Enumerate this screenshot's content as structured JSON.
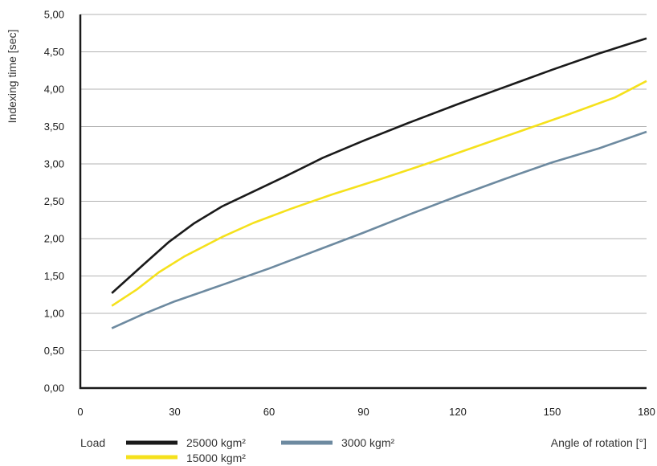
{
  "chart_data": {
    "type": "line",
    "ylabel": "Indexing time [sec]",
    "xlabel": "Angle of rotation [°]",
    "xlim": [
      0,
      180
    ],
    "ylim": [
      0,
      5
    ],
    "x_ticks": [
      0,
      30,
      60,
      90,
      120,
      150,
      180
    ],
    "x_tick_labels": [
      "0",
      "30",
      "60",
      "90",
      "120",
      "150",
      "180"
    ],
    "y_ticks": [
      0,
      0.5,
      1,
      1.5,
      2,
      2.5,
      3,
      3.5,
      4,
      4.5,
      5
    ],
    "y_tick_labels": [
      "0,00",
      "0,50",
      "1,00",
      "1,50",
      "2,00",
      "2,50",
      "3,00",
      "3,50",
      "4,00",
      "4,50",
      "5,00"
    ],
    "grid": {
      "horizontal": true,
      "vertical": false
    },
    "legend": {
      "title": "Load",
      "placement": "bottom-left"
    },
    "series": [
      {
        "name": "25000 kgm²",
        "color": "#1a1a1a",
        "x": [
          10,
          20,
          28,
          36,
          45,
          55,
          65,
          77,
          90,
          105,
          120,
          135,
          150,
          165,
          180
        ],
        "y": [
          1.27,
          1.65,
          1.95,
          2.2,
          2.43,
          2.63,
          2.83,
          3.08,
          3.31,
          3.56,
          3.8,
          4.03,
          4.26,
          4.48,
          4.68
        ]
      },
      {
        "name": "15000 kgm²",
        "color": "#f5e11c",
        "x": [
          10,
          18,
          25,
          33,
          45,
          55,
          67,
          80,
          95,
          110,
          125,
          140,
          155,
          170,
          180
        ],
        "y": [
          1.1,
          1.32,
          1.55,
          1.76,
          2.02,
          2.21,
          2.4,
          2.59,
          2.79,
          3.0,
          3.22,
          3.44,
          3.66,
          3.89,
          4.11
        ]
      },
      {
        "name": "3000 kgm²",
        "color": "#6d8aa0",
        "x": [
          10,
          20,
          30,
          45,
          60,
          75,
          90,
          105,
          120,
          135,
          150,
          165,
          180
        ],
        "y": [
          0.8,
          0.99,
          1.16,
          1.38,
          1.6,
          1.84,
          2.08,
          2.33,
          2.57,
          2.8,
          3.02,
          3.21,
          3.43
        ]
      }
    ]
  }
}
